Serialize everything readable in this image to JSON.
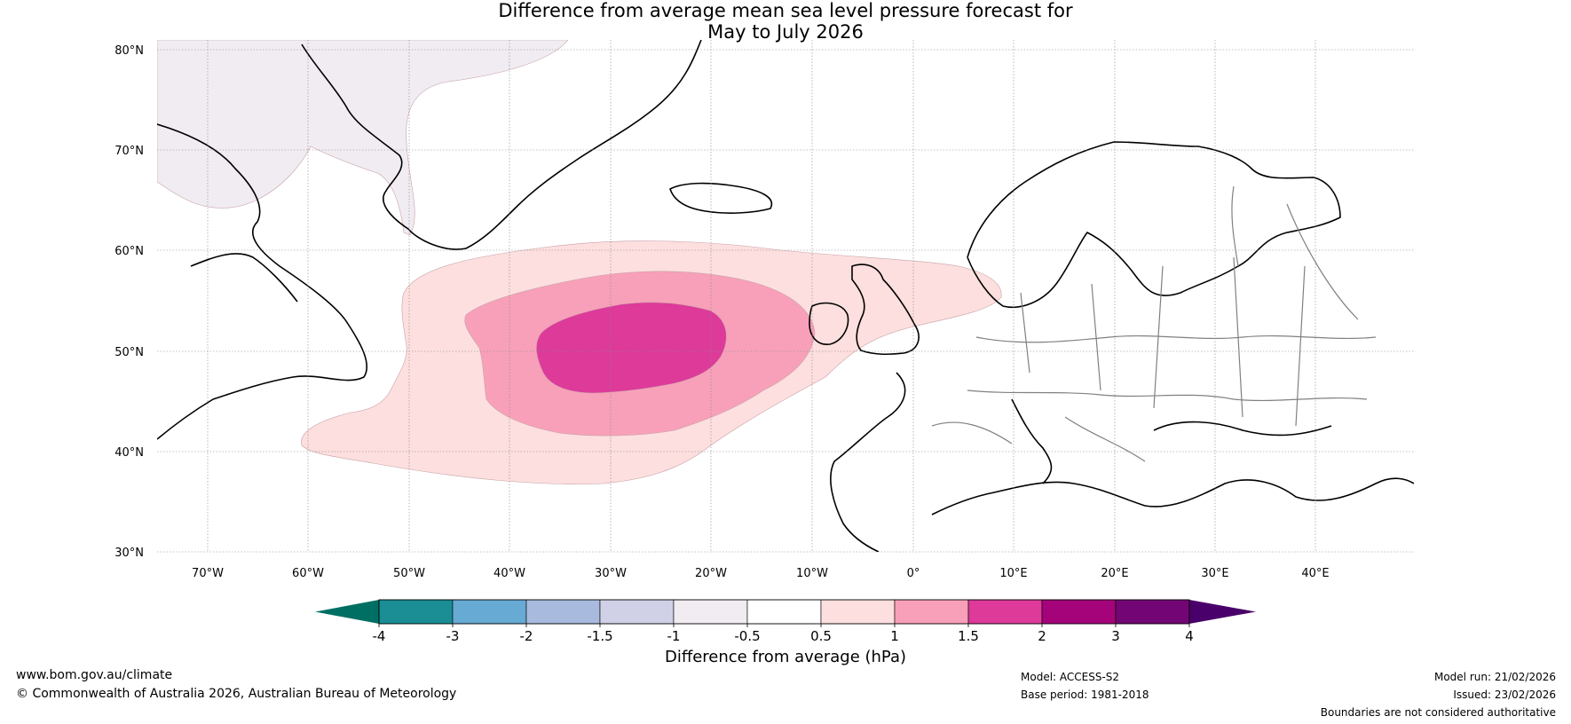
{
  "title": {
    "line1": "Difference from average mean sea level pressure forecast for",
    "line2": "May to July 2026"
  },
  "map": {
    "latitude_labels": [
      "80°N",
      "70°N",
      "60°N",
      "50°N",
      "40°N",
      "30°N"
    ],
    "longitude_labels": [
      "70°W",
      "60°W",
      "50°W",
      "40°W",
      "30°W",
      "20°W",
      "10°W",
      "0°",
      "10°E",
      "20°E",
      "30°E",
      "40°E"
    ],
    "regions": [
      {
        "name": "high-pressure-anomaly-0.5-to-1",
        "category": "0.5 to 1 hPa",
        "color": "#fcdfde"
      },
      {
        "name": "high-pressure-anomaly-1-to-1.5",
        "category": "1 to 1.5 hPa",
        "color": "#f8a0b9"
      },
      {
        "name": "high-pressure-anomaly-1.5-to-2",
        "category": "1.5 to 2 hPa",
        "color": "#dd3a9a"
      },
      {
        "name": "low-pressure-anomaly-arctic",
        "category": "-1 to -0.5 hPa",
        "color": "#f0ecf2"
      }
    ]
  },
  "colorbar": {
    "label": "Difference from average (hPa)",
    "tick_labels": [
      "-4",
      "-3",
      "-2",
      "-1.5",
      "-1",
      "-0.5",
      "0.5",
      "1",
      "1.5",
      "2",
      "3",
      "4"
    ],
    "colors": [
      "#1a8d95",
      "#67aad3",
      "#a8bbde",
      "#d0d0e6",
      "#f0ecf2",
      "#ffffff",
      "#fcdfde",
      "#f8a0b9",
      "#dd3a9a",
      "#a4037a",
      "#730574"
    ],
    "under_color": "#006f63",
    "over_color": "#4a006a"
  },
  "footer": {
    "website": "www.bom.gov.au/climate",
    "copyright": "© Commonwealth of Australia 2026, Australian Bureau of Meteorology",
    "model": "Model: ACCESS-S2",
    "base_period": "Base period: 1981-2018",
    "model_run": "Model run: 21/02/2026",
    "issued": "Issued: 23/02/2026",
    "disclaimer": "Boundaries are not considered authoritative"
  }
}
